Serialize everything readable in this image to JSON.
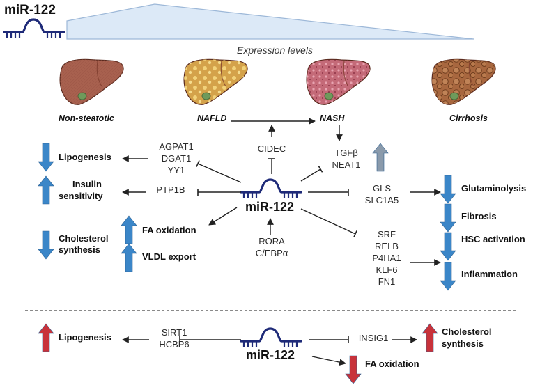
{
  "title": "miR-122",
  "expression_label": "Expression levels",
  "stages": [
    "Non-steatotic",
    "NAFLD",
    "NASH",
    "Cirrhosis"
  ],
  "colors": {
    "navy": "#1e2a78",
    "arrow_up_blue": "#3b86c8",
    "arrow_down_blue": "#3b86c8",
    "arrow_red": "#c8323a",
    "arrow_gray": "#8a9aab",
    "wedge_fill": "#dce9f7",
    "wedge_stroke": "#9db8d8",
    "liver_healthy": "#a8614f",
    "liver_nafld": "#d4a24a",
    "liver_nash": "#c46a78",
    "liver_cirrhosis": "#a8673f"
  },
  "icons": [
    "mirna-hairpin-icon",
    "liver-icon",
    "arrow-up-icon",
    "arrow-down-icon"
  ],
  "upper": {
    "center_label": "miR-122",
    "targets_lipogenesis": [
      "AGPAT1",
      "DGAT1",
      "YY1"
    ],
    "target_insulin": "PTP1B",
    "target_cidec": "CIDEC",
    "targets_nash": [
      "TGFβ",
      "NEAT1"
    ],
    "targets_glutamine": [
      "GLS",
      "SLC1A5"
    ],
    "targets_inflammation": [
      "SRF",
      "RELB",
      "P4HA1",
      "KLF6",
      "FN1"
    ],
    "regulators": [
      "RORA",
      "C/EBPα"
    ],
    "outcomes_left": {
      "lipogenesis": "Lipogenesis",
      "insulin_sensitivity": [
        "Insulin",
        "sensitivity"
      ],
      "cholesterol_synthesis": [
        "Cholesterol",
        "synthesis"
      ],
      "fa_oxidation": "FA oxidation",
      "vldl_export": "VLDL export"
    },
    "outcomes_right": {
      "glutaminolysis": "Glutaminolysis",
      "fibrosis": "Fibrosis",
      "hsc_activation": "HSC activation",
      "inflammation": "Inflammation"
    }
  },
  "lower": {
    "center_label": "miR-122",
    "targets_left": [
      "SIRT1",
      "HCBP6"
    ],
    "target_right": "INSIG1",
    "outcomes": {
      "lipogenesis": "Lipogenesis",
      "cholesterol_synthesis": [
        "Cholesterol",
        "synthesis"
      ],
      "fa_oxidation": "FA oxidation"
    }
  }
}
